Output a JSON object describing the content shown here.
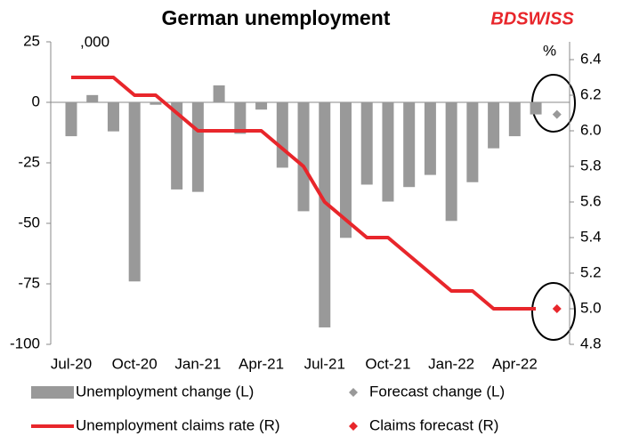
{
  "chart_data": {
    "type": "bar",
    "title": "German unemployment",
    "brand": "BDSWISS",
    "annotations": [
      ",000",
      "%"
    ],
    "categories": [
      "Jul-20",
      null,
      null,
      "Oct-20",
      null,
      null,
      "Jan-21",
      null,
      null,
      "Apr-21",
      null,
      null,
      "Jul-21",
      null,
      null,
      "Oct-21",
      null,
      null,
      "Jan-22",
      null,
      null,
      "Apr-22",
      null,
      null
    ],
    "ylim": [
      -100,
      25
    ],
    "yticks": [
      -100,
      -75,
      -50,
      -25,
      0,
      25
    ],
    "y2lim": [
      4.8,
      6.5
    ],
    "y2ticks": [
      4.8,
      {
        "value": 5,
        "label": "5.0"
      },
      5.2,
      5.4,
      5.6,
      5.8,
      {
        "value": 6,
        "label": "6.0"
      },
      6.2,
      6.4
    ],
    "series": [
      {
        "name": "Unemployment change (L)",
        "type": "bar",
        "color": "#999999",
        "values": [
          -14,
          3,
          -12,
          -74,
          -1,
          -36,
          -37,
          7,
          -13,
          -3,
          -27,
          -45,
          -93,
          -56,
          -34,
          -41,
          -35,
          -30,
          -49,
          -33,
          -19,
          -14,
          -5,
          null
        ]
      },
      {
        "name": "Forecast change (L)",
        "type": "scatter",
        "color": "#999999",
        "values": [
          null,
          null,
          null,
          null,
          null,
          null,
          null,
          null,
          null,
          null,
          null,
          null,
          null,
          null,
          null,
          null,
          null,
          null,
          null,
          null,
          null,
          null,
          null,
          -5
        ]
      },
      {
        "name": "Unemployment claims rate (R)",
        "type": "line",
        "axis": "y2",
        "color": "#e8262b",
        "values": [
          6.3,
          6.3,
          6.3,
          6.2,
          6.2,
          6.1,
          6.0,
          6.0,
          6.0,
          6.0,
          5.9,
          5.8,
          5.6,
          5.5,
          5.4,
          5.4,
          5.3,
          5.2,
          5.1,
          5.1,
          5.0,
          5.0,
          5.0,
          null
        ]
      },
      {
        "name": "Claims forecast (R)",
        "type": "scatter",
        "axis": "y2",
        "color": "#e8262b",
        "values": [
          null,
          null,
          null,
          null,
          null,
          null,
          null,
          null,
          null,
          null,
          null,
          null,
          null,
          null,
          null,
          null,
          null,
          null,
          null,
          null,
          null,
          null,
          null,
          5.0
        ]
      }
    ]
  }
}
